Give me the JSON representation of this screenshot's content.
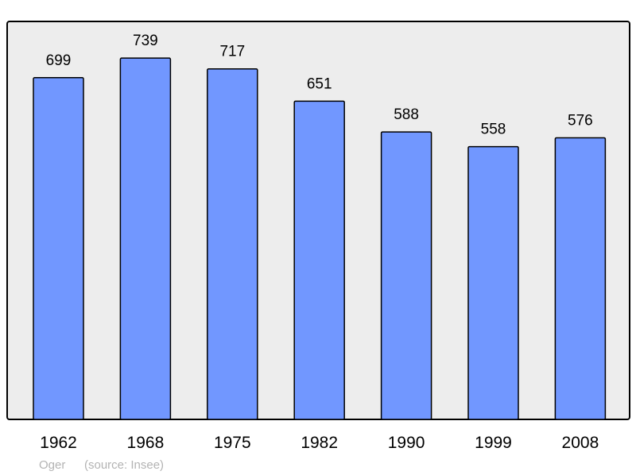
{
  "chart_data": {
    "type": "bar",
    "categories": [
      "1962",
      "1968",
      "1975",
      "1982",
      "1990",
      "1999",
      "2008"
    ],
    "values": [
      699,
      739,
      717,
      651,
      588,
      558,
      576
    ],
    "title": "",
    "xlabel": "",
    "ylabel": "",
    "ylim": [
      0,
      814
    ],
    "grid": false,
    "data_labels": true,
    "colors": {
      "bar": "#7197ff",
      "plot_background": "#ededed",
      "frame": "#000000"
    }
  },
  "footer": {
    "place": "Oger",
    "source": "(source: Insee)"
  }
}
